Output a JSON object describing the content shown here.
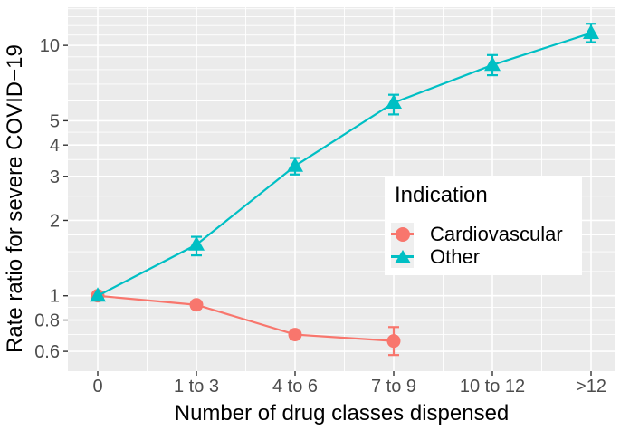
{
  "chart_data": {
    "type": "line",
    "title": "",
    "xlabel": "Number of drug classes dispensed",
    "ylabel": "Rate ratio for severe COVID−19",
    "x_axis": {
      "categories": [
        "0",
        "1 to 3",
        "4 to 6",
        "7 to 9",
        "10 to 12",
        ">12"
      ]
    },
    "y_axis": {
      "scale": "log10",
      "domain": [
        0.5,
        14.2
      ],
      "major_ticks": [
        {
          "value": 10,
          "label": "10"
        },
        {
          "value": 5,
          "label": "5"
        },
        {
          "value": 4,
          "label": "4"
        },
        {
          "value": 3,
          "label": "3"
        },
        {
          "value": 2,
          "label": "2"
        },
        {
          "value": 1,
          "label": "1"
        },
        {
          "value": 0.8,
          "label": "0.8"
        },
        {
          "value": 0.6,
          "label": "0.6"
        }
      ],
      "minor_gridlines": [
        0.7,
        0.9,
        1.25,
        1.5,
        1.75,
        2.5,
        3.5,
        4.5,
        6,
        7,
        8,
        9,
        11,
        12,
        13,
        14
      ]
    },
    "legend": {
      "title": "Indication",
      "position": "inside-right"
    },
    "series": [
      {
        "name": "Cardiovascular",
        "color": "#F8766D",
        "marker": "circle",
        "values": [
          1.0,
          0.92,
          0.7,
          0.66
        ],
        "ci_low": [
          1.0,
          0.89,
          0.67,
          0.58
        ],
        "ci_high": [
          1.0,
          0.95,
          0.73,
          0.75
        ]
      },
      {
        "name": "Other",
        "color": "#00BFC4",
        "marker": "triangle",
        "values": [
          1.0,
          1.6,
          3.3,
          5.9,
          8.35,
          11.2
        ],
        "ci_low": [
          1.0,
          1.45,
          3.05,
          5.3,
          7.6,
          10.3
        ],
        "ci_high": [
          1.0,
          1.72,
          3.55,
          6.35,
          9.15,
          12.2
        ]
      }
    ],
    "style": {
      "panel_background": "#EBEBEB",
      "gridline_color": "#FFFFFF",
      "tick_color": "#333333",
      "tick_label_color": "#4D4D4D",
      "axis_title_color": "#000000",
      "legend_key_background": "#EFEFEF"
    }
  }
}
